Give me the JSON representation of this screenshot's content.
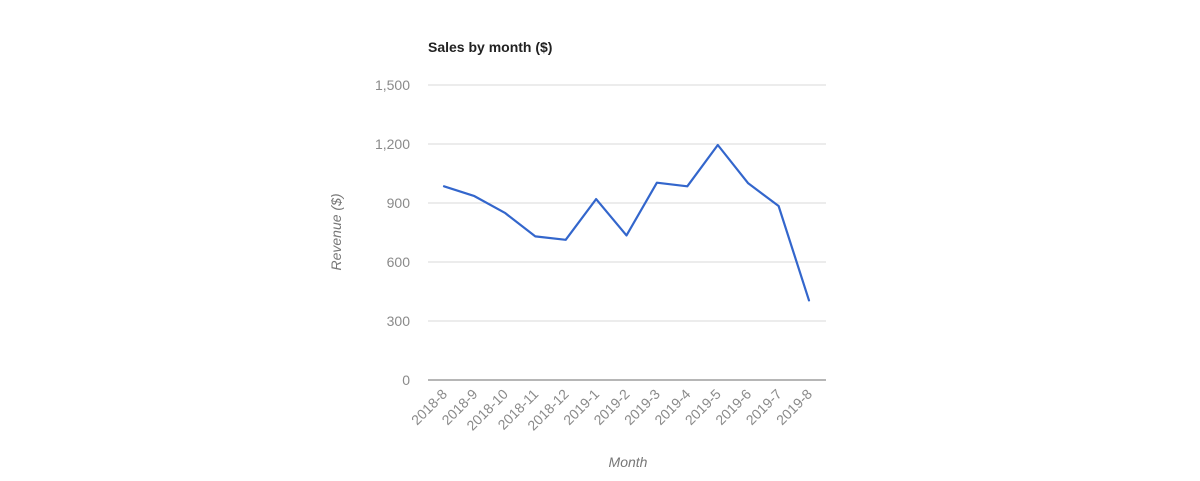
{
  "chart_data": {
    "type": "line",
    "title": "Sales by month ($)",
    "xlabel": "Month",
    "ylabel": "Revenue ($)",
    "ylim": [
      0,
      1500
    ],
    "yticks": [
      0,
      300,
      600,
      900,
      1200,
      1500
    ],
    "ytick_labels": [
      "0",
      "300",
      "600",
      "900",
      "1,200",
      "1,500"
    ],
    "grid": true,
    "legend": "none",
    "categories": [
      "2018-8",
      "2018-9",
      "2018-10",
      "2018-11",
      "2018-12",
      "2019-1",
      "2019-2",
      "2019-3",
      "2019-4",
      "2019-5",
      "2019-6",
      "2019-7",
      "2019-8"
    ],
    "series": [
      {
        "values": [
          985,
          935,
          850,
          730,
          713,
          920,
          735,
          1003,
          985,
          1195,
          1000,
          885,
          405
        ],
        "color": "#3366cc"
      }
    ]
  }
}
